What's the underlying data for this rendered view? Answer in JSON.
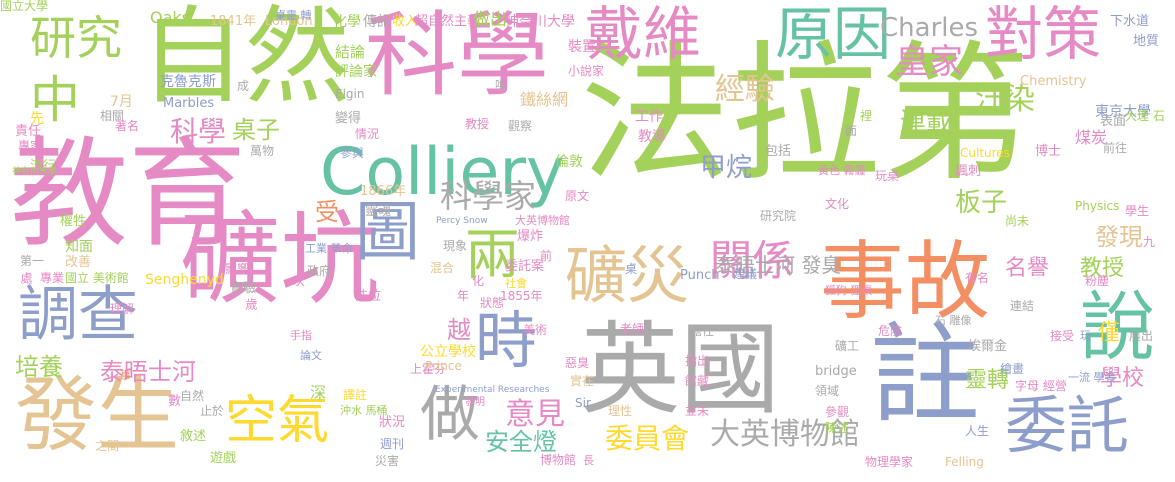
{
  "words": [
    {
      "text": "法拉第",
      "color": "#a3d15a"
    },
    {
      "text": "教育",
      "color": "#e58ac4"
    },
    {
      "text": "自然",
      "color": "#a3d15a"
    },
    {
      "text": "科學",
      "color": "#e58ac4"
    },
    {
      "text": "英國",
      "color": "#aaaaaa"
    },
    {
      "text": "礦坑",
      "color": "#e58ac4"
    },
    {
      "text": "註",
      "color": "#8e9ecb"
    },
    {
      "text": "Colliery",
      "color": "#65c2a5"
    },
    {
      "text": "事故",
      "color": "#f38f63"
    },
    {
      "text": "發生",
      "color": "#e4c492"
    },
    {
      "text": "調查",
      "color": "#8e9ecb"
    },
    {
      "text": "說",
      "color": "#65c2a5"
    },
    {
      "text": "戴維",
      "color": "#e58ac4"
    },
    {
      "text": "原因",
      "color": "#65c2a5"
    },
    {
      "text": "對策",
      "color": "#e58ac4"
    },
    {
      "text": "圖",
      "color": "#8e9ecb"
    },
    {
      "text": "時",
      "color": "#8e9ecb"
    },
    {
      "text": "礦災",
      "color": "#e4c492"
    },
    {
      "text": "委託",
      "color": "#8e9ecb"
    },
    {
      "text": "研究",
      "color": "#a3d15a"
    },
    {
      "text": "中",
      "color": "#a3d15a"
    },
    {
      "text": "兩",
      "color": "#a3d15a"
    },
    {
      "text": "做",
      "color": "#aaaaaa"
    },
    {
      "text": "空氣",
      "color": "#ffd92e"
    },
    {
      "text": "關係",
      "color": "#e58ac4"
    },
    {
      "text": "科學家",
      "color": "#aaaaaa"
    },
    {
      "text": "皇家",
      "color": "#e58ac4"
    },
    {
      "text": "Charles",
      "color": "#aaaaaa"
    },
    {
      "text": "經驗",
      "color": "#e4c492"
    },
    {
      "text": "汙染",
      "color": "#a3d15a"
    },
    {
      "text": "連載",
      "color": "#a3d15a"
    },
    {
      "text": "科學",
      "color": "#e58ac4"
    },
    {
      "text": "桌子",
      "color": "#a3d15a"
    },
    {
      "text": "甲烷",
      "color": "#8e9ecb"
    },
    {
      "text": "板子",
      "color": "#a3d15a"
    },
    {
      "text": "意見",
      "color": "#e58ac4"
    },
    {
      "text": "安全燈",
      "color": "#65c2a5"
    },
    {
      "text": "委員會",
      "color": "#ffd92e"
    },
    {
      "text": "大英博物館",
      "color": "#aaaaaa"
    },
    {
      "text": "培養",
      "color": "#a3d15a"
    },
    {
      "text": "泰晤士河",
      "color": "#e58ac4"
    },
    {
      "text": "名譽",
      "color": "#e58ac4"
    },
    {
      "text": "教授",
      "color": "#a3d15a"
    },
    {
      "text": "發現",
      "color": "#e4c492"
    },
    {
      "text": "學校",
      "color": "#e58ac4"
    },
    {
      "text": "靈轉",
      "color": "#a3d15a"
    },
    {
      "text": "泰晤士河 發臭",
      "color": "#aaaaaa"
    },
    {
      "text": "越",
      "color": "#e58ac4"
    },
    {
      "text": "受",
      "color": "#f38f63"
    },
    {
      "text": "僅",
      "color": "#ffd92e"
    },
    {
      "text": "Oaks",
      "color": "#a3d15a"
    },
    {
      "text": "1841年",
      "color": "#e4c492"
    },
    {
      "text": "London",
      "color": "#e4c492"
    },
    {
      "text": "化學",
      "color": "#a3d15a"
    },
    {
      "text": "傳記",
      "color": "#aaaaaa"
    },
    {
      "text": "收入",
      "color": "#ffd92e"
    },
    {
      "text": "超自然主義",
      "color": "#e58ac4"
    },
    {
      "text": "做出",
      "color": "#a3d15a"
    },
    {
      "text": "神奈川大學",
      "color": "#e58ac4"
    },
    {
      "text": "下水道",
      "color": "#8e9ecb"
    },
    {
      "text": "地質",
      "color": "#8e9ecb"
    },
    {
      "text": "東京大學",
      "color": "#8e9ecb"
    },
    {
      "text": "煤炭",
      "color": "#e58ac4"
    },
    {
      "text": "Chemistry",
      "color": "#e4c492"
    },
    {
      "text": "工作",
      "color": "#e58ac4"
    },
    {
      "text": "裝置",
      "color": "#e58ac4"
    },
    {
      "text": "小說家",
      "color": "#e58ac4"
    },
    {
      "text": "結論",
      "color": "#a3d15a"
    },
    {
      "text": "評論家",
      "color": "#a3d15a"
    },
    {
      "text": "克魯克斯",
      "color": "#8e9ecb"
    },
    {
      "text": "Marbles",
      "color": "#8e9ecb"
    },
    {
      "text": "Elgin",
      "color": "#aaaaaa"
    },
    {
      "text": "7月",
      "color": "#e4c492"
    },
    {
      "text": "著名",
      "color": "#e58ac4"
    },
    {
      "text": "成",
      "color": "#aaaaaa"
    },
    {
      "text": "變得",
      "color": "#aaaaaa"
    },
    {
      "text": "情況",
      "color": "#e58ac4"
    },
    {
      "text": "教授",
      "color": "#e58ac4"
    },
    {
      "text": "觀察",
      "color": "#aaaaaa"
    },
    {
      "text": "鐵絲網",
      "color": "#e4c492"
    },
    {
      "text": "教導",
      "color": "#e58ac4"
    },
    {
      "text": "包括",
      "color": "#aaaaaa"
    },
    {
      "text": "萬物",
      "color": "#aaaaaa"
    },
    {
      "text": "參與",
      "color": "#8e9ecb"
    },
    {
      "text": "倫敦",
      "color": "#a3d15a"
    },
    {
      "text": "1866年",
      "color": "#e4c492"
    },
    {
      "text": "靈魂",
      "color": "#aaaaaa"
    },
    {
      "text": "原文",
      "color": "#e58ac4"
    },
    {
      "text": "責任",
      "color": "#e58ac4"
    },
    {
      "text": "專家",
      "color": "#e58ac4"
    },
    {
      "text": "相關",
      "color": "#aaaaaa"
    },
    {
      "text": "流行",
      "color": "#a3d15a"
    },
    {
      "text": "研究院",
      "color": "#aaaaaa"
    },
    {
      "text": "Cultures",
      "color": "#ffd92e"
    },
    {
      "text": "博士",
      "color": "#e58ac4"
    },
    {
      "text": "表面",
      "color": "#aaaaaa"
    },
    {
      "text": "前往",
      "color": "#aaaaaa"
    },
    {
      "text": "諷刺",
      "color": "#e58ac4"
    },
    {
      "text": "玩桌",
      "color": "#e58ac4"
    },
    {
      "text": "文化",
      "color": "#e58ac4"
    },
    {
      "text": "尚未",
      "color": "#a3d15a"
    },
    {
      "text": "學生",
      "color": "#e58ac4"
    },
    {
      "text": "Physics",
      "color": "#a3d15a"
    },
    {
      "text": "粉塵",
      "color": "#e58ac4"
    },
    {
      "text": "建議",
      "color": "#8e9ecb"
    },
    {
      "text": "Punch",
      "color": "#8e9ecb"
    },
    {
      "text": "爆炸",
      "color": "#e58ac4"
    },
    {
      "text": "大英博物館",
      "color": "#e58ac4"
    },
    {
      "text": "Percy Snow",
      "color": "#8e9ecb"
    },
    {
      "text": "權牲",
      "color": "#a3d15a"
    },
    {
      "text": "知面",
      "color": "#a3d15a"
    },
    {
      "text": "改善",
      "color": "#e4c492"
    },
    {
      "text": "工業 革命",
      "color": "#8e9ecb"
    },
    {
      "text": "政府",
      "color": "#aaaaaa"
    },
    {
      "text": "第一",
      "color": "#aaaaaa"
    },
    {
      "text": "專業",
      "color": "#e58ac4"
    },
    {
      "text": "國立 美術館",
      "color": "#a3d15a"
    },
    {
      "text": "影響",
      "color": "#e58ac4"
    },
    {
      "text": "現象",
      "color": "#aaaaaa"
    },
    {
      "text": "混合",
      "color": "#e4c492"
    },
    {
      "text": "委託案",
      "color": "#e58ac4"
    },
    {
      "text": "社會",
      "color": "#ffd92e"
    },
    {
      "text": "1855年",
      "color": "#e58ac4"
    },
    {
      "text": "有名",
      "color": "#e58ac4"
    },
    {
      "text": "連結",
      "color": "#aaaaaa"
    },
    {
      "text": "接受",
      "color": "#e58ac4"
    },
    {
      "text": "展出",
      "color": "#aaaaaa"
    },
    {
      "text": "Senghenyd",
      "color": "#ffd92e"
    },
    {
      "text": "實驗",
      "color": "#aaaaaa"
    },
    {
      "text": "歲",
      "color": "#e58ac4"
    },
    {
      "text": "法拉",
      "color": "#e58ac4"
    },
    {
      "text": "狀態",
      "color": "#e58ac4"
    },
    {
      "text": "理解",
      "color": "#e58ac4"
    },
    {
      "text": "手指",
      "color": "#e58ac4"
    },
    {
      "text": "公立學校",
      "color": "#ffd92e"
    },
    {
      "text": "上霍芬",
      "color": "#e58ac4"
    },
    {
      "text": "美術",
      "color": "#e58ac4"
    },
    {
      "text": "老師",
      "color": "#e58ac4"
    },
    {
      "text": "擔任",
      "color": "#aaaaaa"
    },
    {
      "text": "危險",
      "color": "#e58ac4"
    },
    {
      "text": "埃爾金",
      "color": "#aaaaaa"
    },
    {
      "text": "指出",
      "color": "#e58ac4"
    },
    {
      "text": "館藏",
      "color": "#e58ac4"
    },
    {
      "text": "礦工",
      "color": "#aaaaaa"
    },
    {
      "text": "bridge",
      "color": "#aaaaaa"
    },
    {
      "text": "繪畫",
      "color": "#8e9ecb"
    },
    {
      "text": "字母 經營",
      "color": "#e58ac4"
    },
    {
      "text": "Prince",
      "color": "#e4c492"
    },
    {
      "text": "惡臭",
      "color": "#e58ac4"
    },
    {
      "text": "實在",
      "color": "#e4c492"
    },
    {
      "text": "論文",
      "color": "#8e9ecb"
    },
    {
      "text": "自然",
      "color": "#aaaaaa"
    },
    {
      "text": "止於",
      "color": "#aaaaaa"
    },
    {
      "text": "深",
      "color": "#a3d15a"
    },
    {
      "text": "譯註",
      "color": "#ffd92e"
    },
    {
      "text": "沖水 馬桶",
      "color": "#a3d15a"
    },
    {
      "text": "Experimental Researches",
      "color": "#8e9ecb"
    },
    {
      "text": "發明",
      "color": "#e58ac4"
    },
    {
      "text": "理性",
      "color": "#e4c492"
    },
    {
      "text": "並未",
      "color": "#e58ac4"
    },
    {
      "text": "領域",
      "color": "#aaaaaa"
    },
    {
      "text": "參觀",
      "color": "#e58ac4"
    },
    {
      "text": "人生",
      "color": "#8e9ecb"
    },
    {
      "text": "敘述",
      "color": "#a3d15a"
    },
    {
      "text": "狀況",
      "color": "#e58ac4"
    },
    {
      "text": "週刊",
      "color": "#8e9ecb"
    },
    {
      "text": "Sir",
      "color": "#8e9ecb"
    },
    {
      "text": "陳述",
      "color": "#a3d15a"
    },
    {
      "text": "之間",
      "color": "#e4c492"
    },
    {
      "text": "遊戲",
      "color": "#a3d15a"
    },
    {
      "text": "災害",
      "color": "#aaaaaa"
    },
    {
      "text": "博物館",
      "color": "#e58ac4"
    },
    {
      "text": "物理學家",
      "color": "#e58ac4"
    },
    {
      "text": "Felling",
      "color": "#e4c492"
    },
    {
      "text": "九",
      "color": "#e58ac4"
    },
    {
      "text": "處",
      "color": "#e58ac4"
    },
    {
      "text": "一流 學者",
      "color": "#8e9ecb"
    },
    {
      "text": "大理 石",
      "color": "#a3d15a"
    },
    {
      "text": "黃色 霧霾",
      "color": "#e58ac4"
    },
    {
      "text": "桌靈 轉",
      "color": "#8e9ecb"
    },
    {
      "text": "狐狗 狸桌",
      "color": "#e58ac4"
    },
    {
      "text": "石 雕像",
      "color": "#aaaaaa"
    },
    {
      "text": "面",
      "color": "#aaaaaa"
    },
    {
      "text": "裡",
      "color": "#a3d15a"
    },
    {
      "text": "化",
      "color": "#e58ac4"
    },
    {
      "text": "年",
      "color": "#e58ac4"
    },
    {
      "text": "次",
      "color": "#e58ac4"
    },
    {
      "text": "前",
      "color": "#e58ac4"
    },
    {
      "text": "桌",
      "color": "#8e9ecb"
    },
    {
      "text": "長",
      "color": "#e58ac4"
    },
    {
      "text": "先",
      "color": "#ffd92e"
    },
    {
      "text": "事",
      "color": "#f38f63"
    },
    {
      "text": "數",
      "color": "#e58ac4"
    },
    {
      "text": "喚",
      "color": "#aaaaaa"
    },
    {
      "text": "玩",
      "color": "#8e9ecb"
    },
    {
      "text": "神奈川大學",
      "color": "#a3d15a"
    },
    {
      "text": "國立大學",
      "color": "#a3d15a"
    }
  ]
}
